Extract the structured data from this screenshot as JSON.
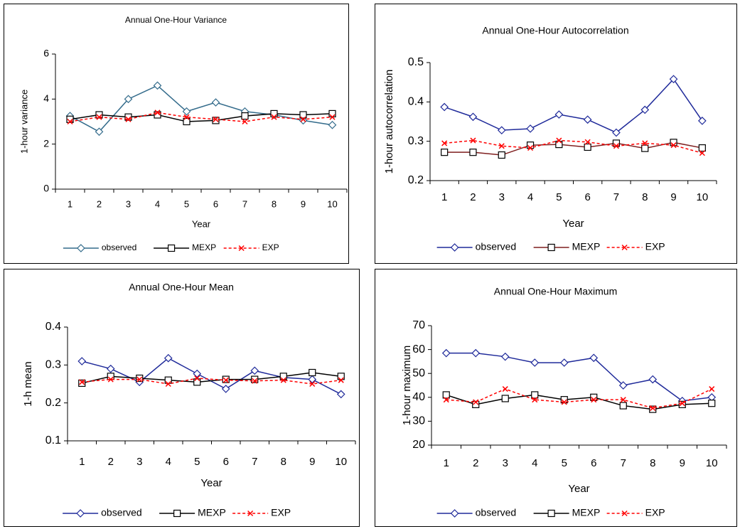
{
  "chart_data": [
    {
      "type": "line",
      "title": "Annual One-Hour Variance",
      "x_label": "Year",
      "y_label": "1-hour variance",
      "categories": [
        "1",
        "2",
        "3",
        "4",
        "5",
        "6",
        "7",
        "8",
        "9",
        "10"
      ],
      "ylim": [
        0,
        6
      ],
      "yticks": [
        0,
        2,
        4,
        6
      ],
      "series": [
        {
          "name": "observed",
          "color": "#336b8b",
          "marker": "diamond",
          "linestyle": "solid",
          "values": [
            3.25,
            2.55,
            4.0,
            4.6,
            3.45,
            3.85,
            3.45,
            3.3,
            3.05,
            2.85
          ]
        },
        {
          "name": "MEXP",
          "color": "#000000",
          "marker": "square",
          "linestyle": "solid",
          "values": [
            3.1,
            3.3,
            3.2,
            3.3,
            3.0,
            3.05,
            3.25,
            3.35,
            3.3,
            3.35
          ]
        },
        {
          "name": "EXP",
          "color": "#ff0000",
          "marker": "x",
          "linestyle": "dashed",
          "values": [
            3.0,
            3.2,
            3.1,
            3.4,
            3.2,
            3.1,
            3.0,
            3.2,
            3.1,
            3.2
          ]
        }
      ]
    },
    {
      "type": "line",
      "title": "Annual One-Hour Autocorrelation",
      "x_label": "Year",
      "y_label": "1-hour autocorrelation",
      "categories": [
        "1",
        "2",
        "3",
        "4",
        "5",
        "6",
        "7",
        "8",
        "9",
        "10"
      ],
      "ylim": [
        0.2,
        0.5
      ],
      "yticks": [
        0.2,
        0.3,
        0.4,
        0.5
      ],
      "series": [
        {
          "name": "observed",
          "color": "#1f2a9a",
          "marker": "diamond",
          "linestyle": "solid",
          "values": [
            0.387,
            0.362,
            0.328,
            0.332,
            0.368,
            0.355,
            0.322,
            0.38,
            0.458,
            0.352
          ]
        },
        {
          "name": "MEXP",
          "color": "#7f1f1f",
          "marker": "square",
          "linestyle": "solid",
          "values": [
            0.272,
            0.272,
            0.265,
            0.29,
            0.292,
            0.285,
            0.295,
            0.282,
            0.297,
            0.283
          ]
        },
        {
          "name": "EXP",
          "color": "#ff0000",
          "marker": "x",
          "linestyle": "dashed",
          "values": [
            0.295,
            0.302,
            0.288,
            0.283,
            0.302,
            0.298,
            0.288,
            0.295,
            0.29,
            0.27
          ]
        }
      ]
    },
    {
      "type": "line",
      "title": "Annual One-Hour Mean",
      "x_label": "Year",
      "y_label": "1-h mean",
      "categories": [
        "1",
        "2",
        "3",
        "4",
        "5",
        "6",
        "7",
        "8",
        "9",
        "10"
      ],
      "ylim": [
        0.1,
        0.4
      ],
      "yticks": [
        0.1,
        0.2,
        0.3,
        0.4
      ],
      "series": [
        {
          "name": "observed",
          "color": "#1f2a9a",
          "marker": "diamond",
          "linestyle": "solid",
          "values": [
            0.31,
            0.29,
            0.255,
            0.318,
            0.277,
            0.237,
            0.285,
            0.267,
            0.262,
            0.223
          ]
        },
        {
          "name": "MEXP",
          "color": "#000000",
          "marker": "square",
          "linestyle": "solid",
          "values": [
            0.252,
            0.27,
            0.265,
            0.26,
            0.255,
            0.262,
            0.262,
            0.27,
            0.28,
            0.27
          ]
        },
        {
          "name": "EXP",
          "color": "#ff0000",
          "marker": "x",
          "linestyle": "dashed",
          "values": [
            0.255,
            0.262,
            0.262,
            0.25,
            0.265,
            0.26,
            0.258,
            0.26,
            0.25,
            0.26
          ]
        }
      ]
    },
    {
      "type": "line",
      "title": "Annual One-Hour Maximum",
      "x_label": "Year",
      "y_label": "1-hour maximum",
      "categories": [
        "1",
        "2",
        "3",
        "4",
        "5",
        "6",
        "7",
        "8",
        "9",
        "10"
      ],
      "ylim": [
        20,
        70
      ],
      "yticks": [
        20,
        30,
        40,
        50,
        60,
        70
      ],
      "series": [
        {
          "name": "observed",
          "color": "#1f2a9a",
          "marker": "diamond",
          "linestyle": "solid",
          "values": [
            58.5,
            58.5,
            57,
            54.5,
            54.5,
            56.5,
            45,
            47.5,
            38.5,
            40
          ]
        },
        {
          "name": "MEXP",
          "color": "#000000",
          "marker": "square",
          "linestyle": "solid",
          "values": [
            41,
            37,
            39.5,
            41,
            39,
            40,
            36.5,
            35,
            37,
            37.5
          ]
        },
        {
          "name": "EXP",
          "color": "#ff0000",
          "marker": "x",
          "linestyle": "dashed",
          "values": [
            39,
            38,
            43.5,
            39,
            38,
            39,
            39,
            35.5,
            37.5,
            43.5
          ]
        }
      ]
    }
  ]
}
